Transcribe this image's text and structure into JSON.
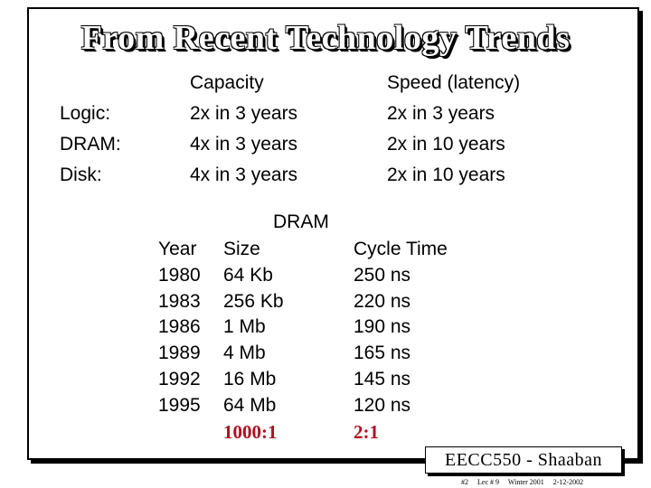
{
  "title": "From Recent Technology Trends",
  "trends": {
    "capacity_header": "Capacity",
    "speed_header": "Speed (latency)",
    "rows": [
      {
        "label": "Logic:",
        "capacity": "2x in 3 years",
        "speed": "2x in 3 years"
      },
      {
        "label": "DRAM:",
        "capacity": "4x in 3 years",
        "speed": "2x in 10 years"
      },
      {
        "label": "Disk:",
        "capacity": "4x in 3 years",
        "speed": "2x in 10 years"
      }
    ]
  },
  "dram_table": {
    "group_header": "DRAM",
    "headers": {
      "year": "Year",
      "size": "Size",
      "cycle": "Cycle Time"
    },
    "rows": [
      {
        "year": "1980",
        "size": "64 Kb",
        "cycle": "250 ns"
      },
      {
        "year": "1983",
        "size": "256 Kb",
        "cycle": "220 ns"
      },
      {
        "year": "1986",
        "size": "1 Mb",
        "cycle": "190 ns"
      },
      {
        "year": "1989",
        "size": "4 Mb",
        "cycle": "165 ns"
      },
      {
        "year": "1992",
        "size": "16 Mb",
        "cycle": "145 ns"
      },
      {
        "year": "1995",
        "size": "64 Mb",
        "cycle": "120 ns"
      }
    ],
    "size_ratio": "1000:1",
    "cycle_ratio": "2:1"
  },
  "badge": "EECC550 - Shaaban",
  "footer": {
    "slide": "#2",
    "lecture": "Lec # 9",
    "term": "Winter 2001",
    "date": "2-12-2002"
  }
}
